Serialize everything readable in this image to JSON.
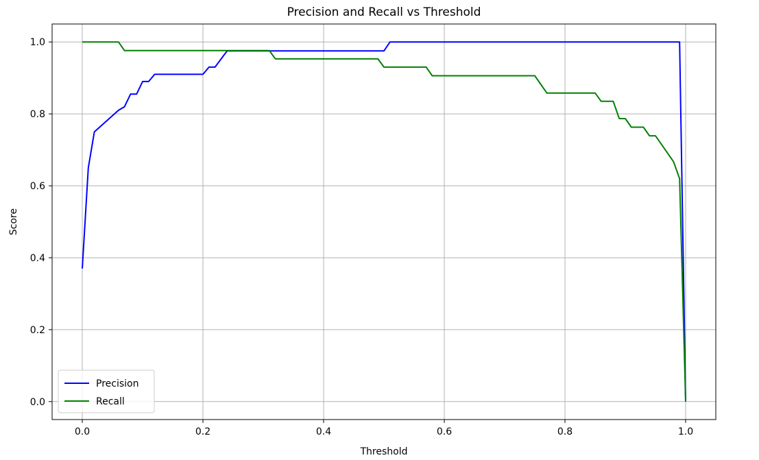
{
  "chart_data": {
    "type": "line",
    "title": "Precision and Recall vs Threshold",
    "xlabel": "Threshold",
    "ylabel": "Score",
    "xlim": [
      -0.05,
      1.05
    ],
    "ylim": [
      -0.05,
      1.05
    ],
    "xticks": [
      0.0,
      0.2,
      0.4,
      0.6,
      0.8,
      1.0
    ],
    "xtick_labels": [
      "0.0",
      "0.2",
      "0.4",
      "0.6",
      "0.8",
      "1.0"
    ],
    "yticks": [
      0.0,
      0.2,
      0.4,
      0.6,
      0.8,
      1.0
    ],
    "ytick_labels": [
      "0.0",
      "0.2",
      "0.4",
      "0.6",
      "0.8",
      "1.0"
    ],
    "grid": true,
    "legend_position": "lower-left",
    "series": [
      {
        "name": "Precision",
        "color": "#0000ff",
        "x": [
          0.0,
          0.01,
          0.02,
          0.06,
          0.07,
          0.08,
          0.09,
          0.1,
          0.11,
          0.12,
          0.2,
          0.21,
          0.22,
          0.24,
          0.3,
          0.31,
          0.5,
          0.51,
          0.99,
          1.0
        ],
        "y": [
          0.37,
          0.65,
          0.75,
          0.81,
          0.82,
          0.855,
          0.855,
          0.89,
          0.89,
          0.91,
          0.91,
          0.93,
          0.93,
          0.975,
          0.975,
          0.975,
          0.975,
          1.0,
          1.0,
          0.0
        ]
      },
      {
        "name": "Recall",
        "color": "#008000",
        "x": [
          0.0,
          0.06,
          0.07,
          0.31,
          0.32,
          0.49,
          0.5,
          0.57,
          0.58,
          0.75,
          0.77,
          0.85,
          0.86,
          0.88,
          0.89,
          0.9,
          0.91,
          0.93,
          0.94,
          0.95,
          0.98,
          0.99,
          1.0
        ],
        "y": [
          1.0,
          1.0,
          0.976,
          0.976,
          0.953,
          0.953,
          0.93,
          0.93,
          0.906,
          0.906,
          0.858,
          0.858,
          0.835,
          0.835,
          0.787,
          0.787,
          0.763,
          0.763,
          0.739,
          0.739,
          0.667,
          0.62,
          0.0
        ]
      }
    ]
  }
}
